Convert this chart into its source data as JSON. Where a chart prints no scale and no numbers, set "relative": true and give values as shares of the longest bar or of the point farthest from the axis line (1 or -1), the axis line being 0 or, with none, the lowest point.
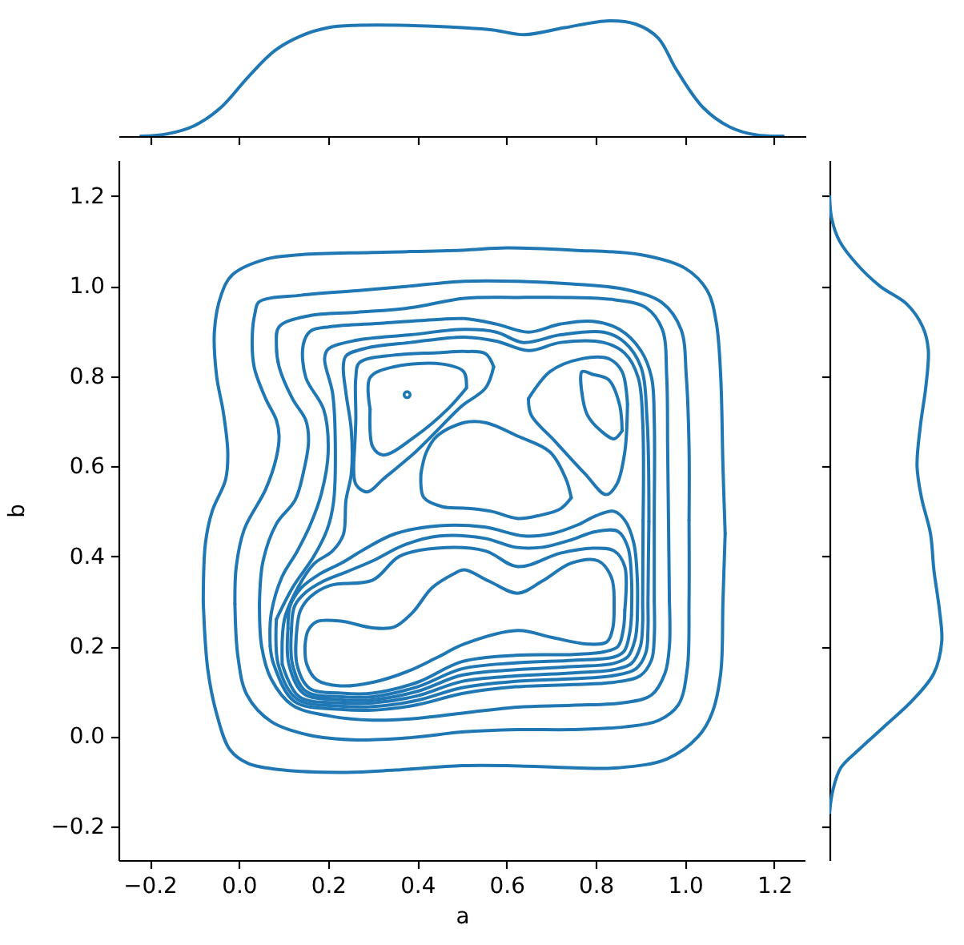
{
  "chart_data": [
    {
      "type": "line",
      "color": "#1f77b4",
      "relative": true,
      "x": [
        -0.22,
        -0.16,
        -0.1,
        -0.04,
        0.02,
        0.08,
        0.14,
        0.2,
        0.26,
        0.38,
        0.5,
        0.57,
        0.64,
        0.73,
        0.83,
        0.89,
        0.94,
        0.98,
        1.04,
        1.1,
        1.16,
        1.22
      ],
      "values": [
        0,
        0.02,
        0.09,
        0.25,
        0.51,
        0.74,
        0.87,
        0.94,
        0.96,
        0.96,
        0.94,
        0.92,
        0.88,
        0.94,
        1,
        0.97,
        0.85,
        0.58,
        0.25,
        0.08,
        0.01,
        0
      ],
      "xlim": [
        -0.27,
        1.27
      ],
      "xticks": [
        -0.2,
        0,
        0.2,
        0.4,
        0.6,
        0.8,
        1,
        1.2
      ],
      "tick_labels": false
    },
    {
      "type": "line",
      "xlabel": "a",
      "ylabel": "b",
      "xlim": [
        -0.27,
        1.27
      ],
      "ylim": [
        -0.275,
        1.28
      ],
      "xticks": [
        {
          "value": -0.2,
          "label": "−0.2"
        },
        {
          "value": 0,
          "label": "0.0"
        },
        0.2,
        0.4,
        0.6,
        0.8,
        {
          "value": 1,
          "label": "1.0"
        },
        1.2
      ],
      "yticks": [
        {
          "value": -0.2,
          "label": "−0.2"
        },
        {
          "value": 0,
          "label": "0.0"
        },
        0.2,
        0.4,
        0.6,
        0.8,
        {
          "value": 1,
          "label": "1.0"
        },
        1.2
      ],
      "series": [
        {
          "color": "#1f77b4",
          "x": [
            -0.08,
            -0.075,
            -0.06,
            -0.03,
            -0.025,
            -0.035,
            -0.05,
            -0.055,
            -0.04,
            -0.015,
            0.06,
            0.14,
            0.3,
            0.5,
            0.6,
            0.75,
            0.9,
            1.0,
            1.05,
            1.07,
            1.08,
            1.085,
            1.09
          ],
          "values": [
            0.3,
            0.43,
            0.5,
            0.57,
            0.63,
            0.72,
            0.8,
            0.9,
            0.98,
            1.025,
            1.06,
            1.07,
            1.075,
            1.08,
            1.085,
            1.08,
            1.07,
            1.04,
            0.99,
            0.92,
            0.8,
            0.6,
            0.45
          ]
        },
        {
          "color": "#1f77b4",
          "x": [
            1.09,
            1.085,
            1.08,
            1.06,
            1.03,
            0.96,
            0.85,
            0.75,
            0.6,
            0.5,
            0.35,
            0.24,
            0.1,
            0.02,
            -0.02,
            -0.05,
            -0.07,
            -0.08
          ],
          "values": [
            0.45,
            0.3,
            0.14,
            0.05,
            0.0,
            -0.05,
            -0.07,
            -0.07,
            -0.065,
            -0.065,
            -0.075,
            -0.08,
            -0.075,
            -0.06,
            -0.03,
            0.05,
            0.15,
            0.3
          ]
        },
        {
          "color": "#1f77b4",
          "x": [
            -0.009,
            -0.006,
            0.012,
            0.06,
            0.084,
            0.09,
            0.084,
            0.06,
            0.034,
            0.03,
            0.036,
            0.045,
            0.14,
            0.264,
            0.38,
            0.505,
            0.625,
            0.745,
            0.865,
            0.949,
            0.991,
            1.003,
            1.009,
            1.009
          ],
          "values": [
            0.294,
            0.377,
            0.46,
            0.549,
            0.62,
            0.667,
            0.702,
            0.75,
            0.821,
            0.892,
            0.94,
            0.965,
            0.98,
            0.99,
            1.0,
            1.011,
            1.011,
            1.005,
            0.993,
            0.963,
            0.904,
            0.797,
            0.643,
            0.48
          ]
        },
        {
          "color": "#1f77b4",
          "x": [
            1.009,
            1.009,
            1.005,
            0.985,
            0.94,
            0.865,
            0.745,
            0.625,
            0.505,
            0.384,
            0.264,
            0.156,
            0.072,
            0.018,
            -0.002,
            -0.009
          ],
          "values": [
            0.48,
            0.3,
            0.15,
            0.07,
            0.035,
            0.021,
            0.015,
            0.015,
            0.01,
            -0.003,
            -0.008,
            0.003,
            0.033,
            0.092,
            0.175,
            0.294
          ]
        },
        {
          "color": "#1f77b4",
          "x": [
            0.046,
            0.054,
            0.084,
            0.126,
            0.144,
            0.156,
            0.15,
            0.12,
            0.09,
            0.084,
            0.09,
            0.156,
            0.264,
            0.384,
            0.505,
            0.625,
            0.745,
            0.841,
            0.913,
            0.949,
            0.959,
            0.961,
            0.963,
            0.965
          ],
          "values": [
            0.294,
            0.389,
            0.472,
            0.525,
            0.584,
            0.655,
            0.702,
            0.75,
            0.821,
            0.869,
            0.91,
            0.934,
            0.942,
            0.952,
            0.973,
            0.975,
            0.975,
            0.97,
            0.952,
            0.904,
            0.797,
            0.643,
            0.477,
            0.3
          ]
        },
        {
          "color": "#1f77b4",
          "x": [
            0.965,
            0.965,
            0.955,
            0.925,
            0.865,
            0.745,
            0.625,
            0.505,
            0.4,
            0.3,
            0.204,
            0.12,
            0.072,
            0.051,
            0.046
          ],
          "values": [
            0.3,
            0.2,
            0.14,
            0.092,
            0.075,
            0.069,
            0.065,
            0.052,
            0.04,
            0.036,
            0.045,
            0.069,
            0.128,
            0.199,
            0.294
          ]
        },
        {
          "color": "#1f77b4",
          "x": [
            0.07,
            0.072,
            0.096,
            0.13,
            0.16,
            0.185,
            0.2,
            0.19,
            0.15,
            0.144,
            0.16,
            0.204,
            0.324,
            0.444,
            0.505,
            0.577,
            0.649,
            0.721,
            0.793,
            0.853,
            0.901,
            0.925,
            0.931,
            0.931,
            0.931
          ],
          "values": [
            0.2,
            0.27,
            0.353,
            0.41,
            0.47,
            0.54,
            0.63,
            0.726,
            0.797,
            0.869,
            0.9,
            0.91,
            0.918,
            0.926,
            0.928,
            0.916,
            0.898,
            0.916,
            0.922,
            0.904,
            0.857,
            0.797,
            0.702,
            0.477,
            0.3
          ]
        },
        {
          "color": "#1f77b4",
          "x": [
            0.931,
            0.931,
            0.925,
            0.9,
            0.84,
            0.75,
            0.62,
            0.5,
            0.4,
            0.3,
            0.228,
            0.125,
            0.078,
            0.07
          ],
          "values": [
            0.3,
            0.22,
            0.17,
            0.135,
            0.12,
            0.115,
            0.11,
            0.095,
            0.07,
            0.058,
            0.06,
            0.077,
            0.16,
            0.2
          ]
        },
        {
          "color": "#1f77b4",
          "x": [
            0.084,
            0.12,
            0.168,
            0.198,
            0.212,
            0.216,
            0.21,
            0.192,
            0.2,
            0.264,
            0.384,
            0.505,
            0.577,
            0.637,
            0.721,
            0.817,
            0.865,
            0.901,
            0.915,
            0.919
          ],
          "values": [
            0.26,
            0.33,
            0.4,
            0.46,
            0.52,
            0.655,
            0.762,
            0.839,
            0.86,
            0.88,
            0.892,
            0.904,
            0.898,
            0.875,
            0.892,
            0.898,
            0.875,
            0.821,
            0.702,
            0.477
          ]
        },
        {
          "color": "#1f77b4",
          "x": [
            0.919,
            0.917,
            0.917,
            0.912,
            0.89,
            0.84,
            0.75,
            0.62,
            0.5,
            0.4,
            0.3,
            0.228,
            0.13,
            0.088,
            0.084
          ],
          "values": [
            0.477,
            0.3,
            0.24,
            0.185,
            0.15,
            0.135,
            0.128,
            0.122,
            0.108,
            0.08,
            0.066,
            0.067,
            0.083,
            0.16,
            0.26
          ]
        },
        {
          "color": "#1f77b4",
          "x": [
            0.097,
            0.102,
            0.132,
            0.168,
            0.21,
            0.234,
            0.24,
            0.252,
            0.252,
            0.24,
            0.234,
            0.24,
            0.288,
            0.384,
            0.505,
            0.577,
            0.649,
            0.721,
            0.817,
            0.865,
            0.895,
            0.905,
            0.906
          ],
          "values": [
            0.16,
            0.26,
            0.33,
            0.383,
            0.412,
            0.448,
            0.525,
            0.584,
            0.679,
            0.762,
            0.821,
            0.845,
            0.863,
            0.875,
            0.887,
            0.878,
            0.857,
            0.875,
            0.875,
            0.851,
            0.797,
            0.702,
            0.48
          ]
        },
        {
          "color": "#1f77b4",
          "x": [
            0.906,
            0.905,
            0.905,
            0.9,
            0.88,
            0.84,
            0.75,
            0.62,
            0.5,
            0.4,
            0.3,
            0.228,
            0.135,
            0.097
          ],
          "values": [
            0.48,
            0.3,
            0.25,
            0.2,
            0.162,
            0.148,
            0.141,
            0.134,
            0.122,
            0.09,
            0.074,
            0.074,
            0.088,
            0.16
          ]
        },
        {
          "color": "#1f77b4",
          "x": [
            0.893,
            0.893,
            0.885,
            0.865,
            0.84,
            0.8,
            0.76,
            0.7,
            0.64,
            0.55,
            0.45,
            0.35,
            0.28,
            0.23,
            0.18,
            0.14,
            0.115,
            0.11
          ],
          "values": [
            0.26,
            0.35,
            0.43,
            0.48,
            0.5,
            0.49,
            0.47,
            0.45,
            0.445,
            0.465,
            0.468,
            0.45,
            0.415,
            0.385,
            0.36,
            0.33,
            0.29,
            0.24
          ]
        },
        {
          "color": "#1f77b4",
          "x": [
            0.11,
            0.112,
            0.145,
            0.23,
            0.3,
            0.4,
            0.5,
            0.62,
            0.75,
            0.84,
            0.872,
            0.888,
            0.893
          ],
          "values": [
            0.24,
            0.16,
            0.095,
            0.081,
            0.081,
            0.1,
            0.136,
            0.148,
            0.155,
            0.162,
            0.177,
            0.215,
            0.26
          ]
        },
        {
          "color": "#1f77b4",
          "x": [
            0.88,
            0.88,
            0.872,
            0.85,
            0.8,
            0.74,
            0.68,
            0.62,
            0.55,
            0.45,
            0.37,
            0.3,
            0.24,
            0.19,
            0.15,
            0.125,
            0.118
          ],
          "values": [
            0.27,
            0.35,
            0.42,
            0.455,
            0.455,
            0.435,
            0.42,
            0.42,
            0.44,
            0.445,
            0.425,
            0.39,
            0.365,
            0.345,
            0.32,
            0.29,
            0.24
          ]
        },
        {
          "color": "#1f77b4",
          "x": [
            0.118,
            0.12,
            0.15,
            0.23,
            0.3,
            0.4,
            0.5,
            0.62,
            0.75,
            0.84,
            0.864,
            0.876,
            0.88
          ],
          "values": [
            0.24,
            0.16,
            0.1,
            0.088,
            0.088,
            0.11,
            0.15,
            0.163,
            0.169,
            0.176,
            0.19,
            0.23,
            0.27
          ]
        },
        {
          "color": "#1f77b4",
          "x": [
            0.865,
            0.865,
            0.841,
            0.793,
            0.721,
            0.625,
            0.552,
            0.444,
            0.36,
            0.3,
            0.204,
            0.16,
            0.138,
            0.13
          ],
          "values": [
            0.28,
            0.377,
            0.412,
            0.418,
            0.407,
            0.377,
            0.412,
            0.418,
            0.4,
            0.347,
            0.335,
            0.31,
            0.28,
            0.24
          ]
        },
        {
          "color": "#1f77b4",
          "x": [
            0.13,
            0.13,
            0.158,
            0.23,
            0.3,
            0.4,
            0.5,
            0.62,
            0.75,
            0.82,
            0.85,
            0.862,
            0.865
          ],
          "values": [
            0.24,
            0.16,
            0.107,
            0.096,
            0.096,
            0.12,
            0.166,
            0.18,
            0.182,
            0.188,
            0.2,
            0.24,
            0.28
          ]
        },
        {
          "color": "#1f77b4",
          "x": [
            0.841,
            0.835,
            0.805,
            0.745,
            0.68,
            0.625,
            0.56,
            0.505,
            0.48,
            0.432,
            0.39,
            0.348,
            0.3,
            0.228,
            0.175,
            0.155,
            0.148
          ],
          "values": [
            0.294,
            0.353,
            0.39,
            0.385,
            0.345,
            0.318,
            0.345,
            0.37,
            0.36,
            0.329,
            0.276,
            0.243,
            0.241,
            0.256,
            0.255,
            0.235,
            0.2
          ]
        },
        {
          "color": "#1f77b4",
          "x": [
            0.148,
            0.152,
            0.175,
            0.228,
            0.3,
            0.38,
            0.444,
            0.505,
            0.625,
            0.7,
            0.781,
            0.825,
            0.838,
            0.841
          ],
          "values": [
            0.2,
            0.16,
            0.125,
            0.112,
            0.12,
            0.145,
            0.175,
            0.205,
            0.235,
            0.22,
            0.205,
            0.21,
            0.24,
            0.294
          ]
        },
        {
          "color": "#1f77b4",
          "x": [
            0.258,
            0.262,
            0.262,
            0.27,
            0.348,
            0.444,
            0.505,
            0.553,
            0.571
          ],
          "values": [
            0.62,
            0.702,
            0.797,
            0.83,
            0.847,
            0.852,
            0.855,
            0.85,
            0.821
          ]
        },
        {
          "color": "#1f77b4",
          "x": [
            0.571,
            0.553,
            0.505,
            0.492,
            0.396,
            0.324,
            0.288,
            0.262,
            0.258
          ],
          "values": [
            0.821,
            0.774,
            0.738,
            0.727,
            0.632,
            0.572,
            0.543,
            0.56,
            0.62
          ]
        },
        {
          "color": "#1f77b4",
          "x": [
            0.294,
            0.294,
            0.348,
            0.456,
            0.504,
            0.51
          ],
          "values": [
            0.727,
            0.797,
            0.821,
            0.827,
            0.81,
            0.774
          ]
        },
        {
          "color": "#1f77b4",
          "x": [
            0.51,
            0.468,
            0.396,
            0.324,
            0.3,
            0.294
          ],
          "values": [
            0.774,
            0.727,
            0.667,
            0.625,
            0.643,
            0.727
          ]
        },
        {
          "type": "scatter",
          "marker": "circle",
          "color": "#1f77b4",
          "x": [
            0.377
          ],
          "values": [
            0.759
          ]
        },
        {
          "color": "#1f77b4",
          "x": [
            0.408,
            0.42,
            0.444,
            0.504,
            0.553,
            0.625,
            0.697,
            0.733,
            0.745
          ],
          "values": [
            0.584,
            0.631,
            0.667,
            0.697,
            0.697,
            0.667,
            0.632,
            0.572,
            0.53
          ]
        },
        {
          "color": "#1f77b4",
          "x": [
            0.745,
            0.72,
            0.67,
            0.625,
            0.565,
            0.505,
            0.456,
            0.414,
            0.408
          ],
          "values": [
            0.53,
            0.505,
            0.49,
            0.484,
            0.5,
            0.507,
            0.51,
            0.531,
            0.584
          ]
        },
        {
          "color": "#1f77b4",
          "x": [
            0.649,
            0.697,
            0.769,
            0.829,
            0.859,
            0.871
          ],
          "values": [
            0.75,
            0.81,
            0.839,
            0.839,
            0.81,
            0.738
          ]
        },
        {
          "color": "#1f77b4",
          "x": [
            0.871,
            0.865,
            0.847,
            0.823,
            0.775,
            0.709,
            0.655,
            0.649
          ],
          "values": [
            0.738,
            0.632,
            0.56,
            0.537,
            0.584,
            0.655,
            0.714,
            0.75
          ]
        },
        {
          "color": "#1f77b4",
          "x": [
            0.769,
            0.769,
            0.793,
            0.829,
            0.853,
            0.859
          ],
          "values": [
            0.762,
            0.81,
            0.804,
            0.792,
            0.738,
            0.679
          ]
        },
        {
          "color": "#1f77b4",
          "x": [
            0.859,
            0.841,
            0.811,
            0.781,
            0.769
          ],
          "values": [
            0.679,
            0.661,
            0.679,
            0.714,
            0.762
          ]
        }
      ]
    },
    {
      "type": "line",
      "orientation": "horizontal",
      "color": "#1f77b4",
      "relative": true,
      "x": [
        1.2,
        1.15,
        1.1,
        1.05,
        1.0,
        0.96,
        0.91,
        0.86,
        0.78,
        0.69,
        0.6,
        0.53,
        0.45,
        0.37,
        0.28,
        0.21,
        0.14,
        0.08,
        0.02,
        -0.03,
        -0.07,
        -0.12,
        -0.17
      ],
      "values": [
        0,
        0.02,
        0.09,
        0.24,
        0.45,
        0.69,
        0.83,
        0.88,
        0.86,
        0.81,
        0.78,
        0.82,
        0.9,
        0.93,
        0.98,
        1,
        0.93,
        0.74,
        0.48,
        0.26,
        0.1,
        0.03,
        0
      ],
      "ylim": [
        -0.275,
        1.28
      ],
      "yticks": [
        -0.2,
        0,
        0.2,
        0.4,
        0.6,
        0.8,
        1,
        1.2
      ],
      "tick_labels": false
    }
  ]
}
